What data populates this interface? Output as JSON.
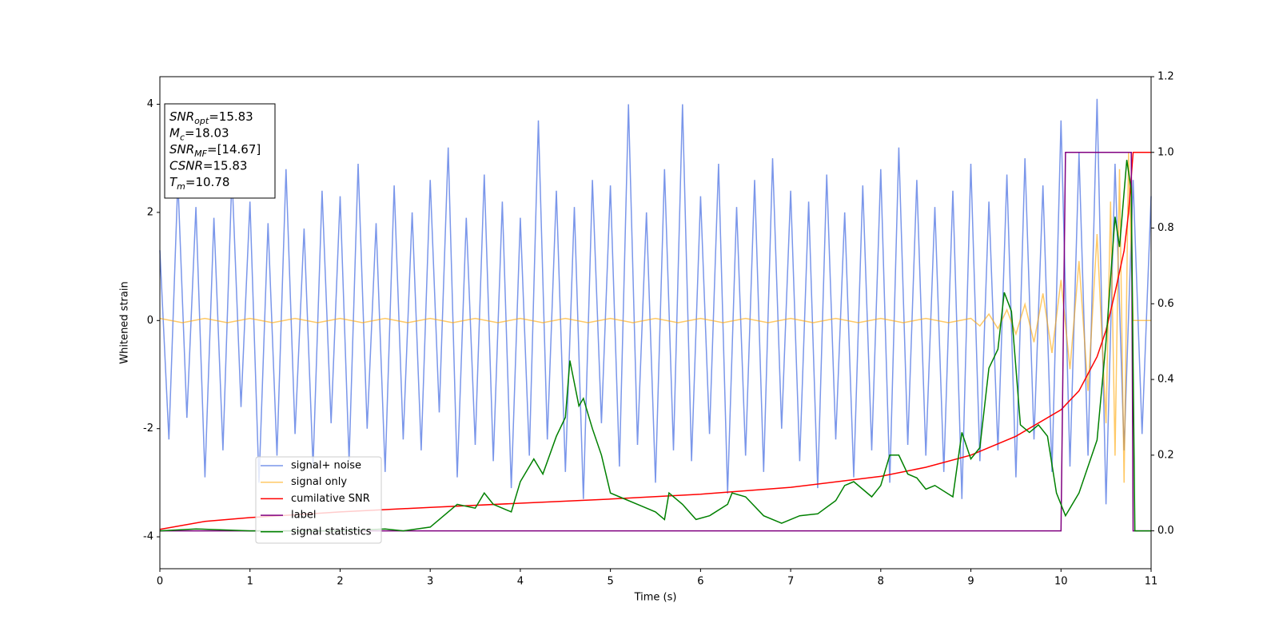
{
  "chart_data": {
    "type": "line",
    "xlabel": "Time (s)",
    "ylabel": "Whitened strain",
    "xlim": [
      0,
      11
    ],
    "xticks": [
      0,
      1,
      2,
      3,
      4,
      5,
      6,
      7,
      8,
      9,
      10,
      11
    ],
    "ylim": [
      -4.59,
      4.51
    ],
    "yticks": [
      -4,
      -2,
      0,
      2,
      4
    ],
    "y2lim": [
      -0.1,
      1.2
    ],
    "y2ticks": [
      {
        "value": 0,
        "label": "0.0"
      },
      0.2,
      0.4,
      0.6,
      0.8,
      {
        "value": 1,
        "label": "1.0"
      },
      1.2
    ],
    "info_box": [
      {
        "name": "SNR",
        "sub": "opt",
        "value": "=15.83"
      },
      {
        "name": "M",
        "sub": "c",
        "value": "=18.03"
      },
      {
        "name": "SNR",
        "sub": "MF",
        "value": "=[14.67]"
      },
      {
        "name": "CSNR",
        "value": "=15.83"
      },
      {
        "name": "T",
        "sub": "m",
        "value": "=10.78"
      }
    ],
    "series": [
      {
        "name": "signal+ noise",
        "color": "#4169e1",
        "x": [
          0,
          0.1,
          0.2,
          0.3,
          0.4,
          0.5,
          0.6,
          0.7,
          0.8,
          0.9,
          1,
          1.1,
          1.2,
          1.3,
          1.4,
          1.5,
          1.6,
          1.7,
          1.8,
          1.9,
          2,
          2.1,
          2.2,
          2.3,
          2.4,
          2.5,
          2.6,
          2.7,
          2.8,
          2.9,
          3,
          3.1,
          3.2,
          3.3,
          3.4,
          3.5,
          3.6,
          3.7,
          3.8,
          3.9,
          4,
          4.1,
          4.2,
          4.3,
          4.4,
          4.5,
          4.6,
          4.7,
          4.8,
          4.9,
          5,
          5.1,
          5.2,
          5.3,
          5.4,
          5.5,
          5.6,
          5.7,
          5.8,
          5.9,
          6,
          6.1,
          6.2,
          6.3,
          6.4,
          6.5,
          6.6,
          6.7,
          6.8,
          6.9,
          7,
          7.1,
          7.2,
          7.3,
          7.4,
          7.5,
          7.6,
          7.7,
          7.8,
          7.9,
          8,
          8.1,
          8.2,
          8.3,
          8.4,
          8.5,
          8.6,
          8.7,
          8.8,
          8.9,
          9,
          9.1,
          9.2,
          9.3,
          9.4,
          9.5,
          9.6,
          9.7,
          9.8,
          9.9,
          10,
          10.1,
          10.2,
          10.3,
          10.4,
          10.5,
          10.6,
          10.7,
          10.8,
          10.9,
          11
        ],
        "values": [
          1.3,
          -2.2,
          2.6,
          -1.8,
          2.1,
          -2.9,
          1.9,
          -2.4,
          2.7,
          -1.6,
          2.2,
          -3.0,
          1.8,
          -2.5,
          2.8,
          -2.1,
          1.7,
          -2.7,
          2.4,
          -1.9,
          2.3,
          -2.6,
          2.9,
          -2.0,
          1.8,
          -2.8,
          2.5,
          -2.2,
          2.0,
          -2.4,
          2.6,
          -1.7,
          3.2,
          -2.9,
          1.9,
          -2.3,
          2.7,
          -2.6,
          2.2,
          -3.1,
          1.9,
          -2.5,
          3.7,
          -2.2,
          2.4,
          -2.8,
          2.1,
          -3.3,
          2.6,
          -1.9,
          2.5,
          -2.7,
          4.0,
          -2.3,
          2.0,
          -3.0,
          2.8,
          -2.4,
          4.0,
          -2.6,
          2.3,
          -2.1,
          2.9,
          -3.2,
          2.1,
          -2.5,
          2.6,
          -2.8,
          3.0,
          -2.0,
          2.4,
          -2.6,
          2.2,
          -3.1,
          2.7,
          -2.2,
          2.0,
          -2.9,
          2.5,
          -2.4,
          2.8,
          -3.0,
          3.2,
          -2.3,
          2.6,
          -2.5,
          2.1,
          -2.8,
          2.4,
          -3.3,
          2.9,
          -2.6,
          2.2,
          -2.4,
          2.7,
          -2.9,
          3.0,
          -2.2,
          2.5,
          -2.8,
          3.7,
          -2.7,
          3.1,
          -2.5,
          4.1,
          -3.4,
          2.9,
          -2.4,
          2.6,
          -2.1,
          2.3
        ]
      },
      {
        "name": "signal only",
        "color": "#ffa500",
        "x": [
          0,
          0.25,
          0.5,
          0.75,
          1,
          1.25,
          1.5,
          1.75,
          2,
          2.25,
          2.5,
          2.75,
          3,
          3.25,
          3.5,
          3.75,
          4,
          4.25,
          4.5,
          4.75,
          5,
          5.25,
          5.5,
          5.75,
          6,
          6.25,
          6.5,
          6.75,
          7,
          7.25,
          7.5,
          7.75,
          8,
          8.25,
          8.5,
          8.75,
          9,
          9.1,
          9.2,
          9.3,
          9.4,
          9.5,
          9.6,
          9.7,
          9.8,
          9.9,
          10,
          10.1,
          10.2,
          10.3,
          10.4,
          10.5,
          10.55,
          10.6,
          10.65,
          10.7,
          10.75,
          10.8,
          11
        ],
        "values": [
          0.04,
          -0.04,
          0.04,
          -0.04,
          0.04,
          -0.04,
          0.04,
          -0.04,
          0.04,
          -0.04,
          0.04,
          -0.04,
          0.04,
          -0.04,
          0.04,
          -0.04,
          0.04,
          -0.04,
          0.04,
          -0.04,
          0.04,
          -0.04,
          0.04,
          -0.04,
          0.04,
          -0.04,
          0.04,
          -0.04,
          0.04,
          -0.04,
          0.04,
          -0.04,
          0.04,
          -0.04,
          0.04,
          -0.04,
          0.04,
          -0.1,
          0.12,
          -0.15,
          0.2,
          -0.25,
          0.3,
          -0.4,
          0.5,
          -0.6,
          0.75,
          -0.9,
          1.1,
          -1.3,
          1.6,
          -1.9,
          2.2,
          -2.5,
          2.8,
          -3.0,
          3.1,
          0,
          0
        ]
      },
      {
        "name": "cumilative SNR",
        "color": "#ff0000",
        "axis": "y2",
        "x": [
          0,
          0.5,
          1,
          2,
          3,
          4,
          5,
          6,
          7,
          8,
          8.5,
          9,
          9.5,
          10,
          10.2,
          10.4,
          10.5,
          10.6,
          10.7,
          10.75,
          10.8,
          11
        ],
        "values": [
          0.004,
          0.025,
          0.035,
          0.05,
          0.062,
          0.073,
          0.084,
          0.097,
          0.115,
          0.144,
          0.168,
          0.2,
          0.25,
          0.32,
          0.37,
          0.46,
          0.53,
          0.63,
          0.74,
          0.84,
          1.0,
          1.0
        ]
      },
      {
        "name": "label",
        "color": "#800080",
        "axis": "y2",
        "x": [
          0,
          10,
          10.05,
          10.78,
          10.8,
          11
        ],
        "values": [
          0,
          0,
          1,
          1,
          0,
          0
        ]
      },
      {
        "name": "signal statistics",
        "color": "#008000",
        "axis": "y2",
        "x": [
          0,
          0.4,
          1,
          2,
          2.5,
          2.7,
          3,
          3.3,
          3.5,
          3.6,
          3.7,
          3.9,
          4,
          4.15,
          4.25,
          4.4,
          4.5,
          4.55,
          4.65,
          4.7,
          4.8,
          4.9,
          5,
          5.1,
          5.3,
          5.5,
          5.6,
          5.65,
          5.8,
          5.95,
          6.1,
          6.3,
          6.35,
          6.5,
          6.7,
          6.9,
          7.1,
          7.3,
          7.5,
          7.6,
          7.7,
          7.8,
          7.9,
          8,
          8.1,
          8.2,
          8.3,
          8.4,
          8.5,
          8.6,
          8.8,
          8.9,
          9,
          9.1,
          9.2,
          9.3,
          9.37,
          9.45,
          9.55,
          9.65,
          9.75,
          9.85,
          9.95,
          10.05,
          10.2,
          10.4,
          10.5,
          10.6,
          10.65,
          10.73,
          10.78,
          10.82,
          11
        ],
        "values": [
          0,
          0.005,
          0,
          0,
          0.005,
          0,
          0.01,
          0.07,
          0.06,
          0.1,
          0.07,
          0.05,
          0.13,
          0.19,
          0.15,
          0.25,
          0.3,
          0.45,
          0.33,
          0.35,
          0.27,
          0.2,
          0.1,
          0.09,
          0.07,
          0.05,
          0.03,
          0.1,
          0.07,
          0.03,
          0.04,
          0.07,
          0.1,
          0.09,
          0.04,
          0.02,
          0.04,
          0.045,
          0.08,
          0.12,
          0.13,
          0.11,
          0.09,
          0.12,
          0.2,
          0.2,
          0.15,
          0.14,
          0.11,
          0.12,
          0.09,
          0.26,
          0.19,
          0.22,
          0.43,
          0.48,
          0.63,
          0.58,
          0.28,
          0.26,
          0.28,
          0.25,
          0.1,
          0.04,
          0.1,
          0.24,
          0.5,
          0.83,
          0.75,
          0.98,
          0.9,
          0,
          0
        ]
      }
    ]
  }
}
